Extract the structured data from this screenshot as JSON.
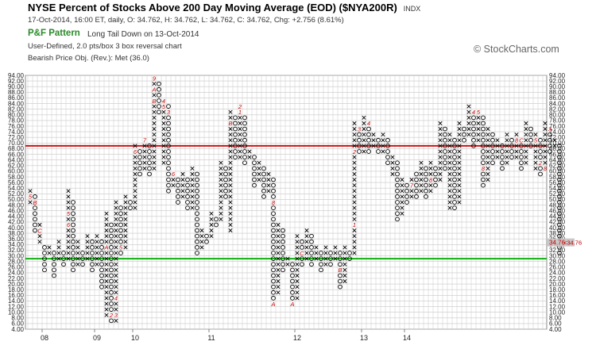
{
  "header": {
    "title": "NYSE Percent of Stocks Above 200 Day Moving Average (EOD) ($NYA200R)",
    "exchange": "INDX",
    "quote": "17-Oct-2014, 16:00 ET, daily, O: 34.762, H: 34.762, L: 34.762, C: 34.762, Chg: +2.756 (8.61%)",
    "pattern_label": "P&F Pattern",
    "pattern_name": "Long Tail Down on 13-Oct-2014",
    "settings": "User-Defined, 2.0 pts/box 3 box reversal chart",
    "price_objective": "Bearish Price Obj. (Rev.): Met (36.0)",
    "watermark": "© StockCharts.com"
  },
  "colors": {
    "grid": "#c8c8c8",
    "red_line": "#d01010",
    "green_line": "#10b010",
    "month_digit": "#c00000",
    "last_price_box": "#c8c8c8"
  },
  "chart_data": {
    "type": "point-and-figure",
    "box_size": 2.0,
    "reversal": 3,
    "ylim": [
      4,
      94
    ],
    "y_ticks": [
      "4.00",
      "6.00",
      "8.00",
      "10.00",
      "12.00",
      "14.00",
      "16.00",
      "18.00",
      "20.00",
      "22.00",
      "24.00",
      "26.00",
      "28.00",
      "30.00",
      "32.00",
      "34.00",
      "36.00",
      "38.00",
      "40.00",
      "42.00",
      "44.00",
      "46.00",
      "48.00",
      "50.00",
      "52.00",
      "54.00",
      "56.00",
      "58.00",
      "60.00",
      "62.00",
      "64.00",
      "66.00",
      "68.00",
      "70.00",
      "72.00",
      "74.00",
      "76.00",
      "78.00",
      "80.00",
      "82.00",
      "84.00",
      "86.00",
      "88.00",
      "90.00",
      "92.00",
      "94.00"
    ],
    "horizontal_lines": [
      {
        "color": "red",
        "value": 69
      },
      {
        "color": "green",
        "value": 29
      }
    ],
    "last_price_label": "34.76",
    "x_year_labels": [
      {
        "label": "08",
        "col": 3
      },
      {
        "label": "09",
        "col": 14
      },
      {
        "label": "10",
        "col": 22
      },
      {
        "label": "11",
        "col": 38
      },
      {
        "label": "12",
        "col": 56
      },
      {
        "label": "13",
        "col": 70
      },
      {
        "label": "14",
        "col": 79
      }
    ],
    "columns": [
      {
        "t": "X",
        "lo": 48,
        "hi": 52
      },
      {
        "t": "O",
        "lo": 38,
        "hi": 50
      },
      {
        "t": "X",
        "lo": 34,
        "hi": 40
      },
      {
        "t": "O",
        "lo": 24,
        "hi": 32
      },
      {
        "t": "X",
        "lo": 30,
        "hi": 32
      },
      {
        "t": "O",
        "lo": 22,
        "hi": 30
      },
      {
        "t": "X",
        "lo": 28,
        "hi": 34
      },
      {
        "t": "O",
        "lo": 26,
        "hi": 30
      },
      {
        "t": "X",
        "lo": 28,
        "hi": 52
      },
      {
        "t": "O",
        "lo": 24,
        "hi": 48
      },
      {
        "t": "X",
        "lo": 26,
        "hi": 34
      },
      {
        "t": "O",
        "lo": 26,
        "hi": 30
      },
      {
        "t": "X",
        "lo": 28,
        "hi": 36
      },
      {
        "t": "O",
        "lo": 24,
        "hi": 34
      },
      {
        "t": "X",
        "lo": 26,
        "hi": 36
      },
      {
        "t": "O",
        "lo": 18,
        "hi": 34
      },
      {
        "t": "X",
        "lo": 8,
        "hi": 44
      },
      {
        "t": "O",
        "lo": 6,
        "hi": 40
      },
      {
        "t": "X",
        "lo": 6,
        "hi": 48
      },
      {
        "t": "O",
        "lo": 30,
        "hi": 46
      },
      {
        "t": "X",
        "lo": 32,
        "hi": 50
      },
      {
        "t": "O",
        "lo": 46,
        "hi": 48
      },
      {
        "t": "X",
        "lo": 46,
        "hi": 68
      },
      {
        "t": "O",
        "lo": 58,
        "hi": 66
      },
      {
        "t": "X",
        "lo": 60,
        "hi": 70
      },
      {
        "t": "O",
        "lo": 58,
        "hi": 68
      },
      {
        "t": "X",
        "lo": 60,
        "hi": 92
      },
      {
        "t": "O",
        "lo": 80,
        "hi": 90
      },
      {
        "t": "X",
        "lo": 62,
        "hi": 84
      },
      {
        "t": "O",
        "lo": 52,
        "hi": 82
      },
      {
        "t": "X",
        "lo": 54,
        "hi": 58
      },
      {
        "t": "O",
        "lo": 48,
        "hi": 56
      },
      {
        "t": "X",
        "lo": 50,
        "hi": 58
      },
      {
        "t": "O",
        "lo": 46,
        "hi": 56
      },
      {
        "t": "X",
        "lo": 46,
        "hi": 60
      },
      {
        "t": "O",
        "lo": 30,
        "hi": 58
      },
      {
        "t": "X",
        "lo": 32,
        "hi": 38
      },
      {
        "t": "O",
        "lo": 34,
        "hi": 36
      },
      {
        "t": "X",
        "lo": 36,
        "hi": 44
      },
      {
        "t": "O",
        "lo": 40,
        "hi": 42
      },
      {
        "t": "X",
        "lo": 42,
        "hi": 62
      },
      {
        "t": "O",
        "lo": 50,
        "hi": 60
      },
      {
        "t": "X",
        "lo": 38,
        "hi": 80
      },
      {
        "t": "O",
        "lo": 64,
        "hi": 78
      },
      {
        "t": "X",
        "lo": 64,
        "hi": 82
      },
      {
        "t": "O",
        "lo": 62,
        "hi": 78
      },
      {
        "t": "X",
        "lo": 64,
        "hi": 66
      },
      {
        "t": "O",
        "lo": 54,
        "hi": 64
      },
      {
        "t": "X",
        "lo": 56,
        "hi": 62
      },
      {
        "t": "O",
        "lo": 50,
        "hi": 60
      },
      {
        "t": "X",
        "lo": 52,
        "hi": 58
      },
      {
        "t": "O",
        "lo": 12,
        "hi": 56
      },
      {
        "t": "X",
        "lo": 16,
        "hi": 40
      },
      {
        "t": "O",
        "lo": 24,
        "hi": 38
      },
      {
        "t": "X",
        "lo": 26,
        "hi": 28
      },
      {
        "t": "O",
        "lo": 12,
        "hi": 26
      },
      {
        "t": "X",
        "lo": 14,
        "hi": 36
      },
      {
        "t": "O",
        "lo": 26,
        "hi": 34
      },
      {
        "t": "X",
        "lo": 28,
        "hi": 38
      },
      {
        "t": "O",
        "lo": 26,
        "hi": 36
      },
      {
        "t": "X",
        "lo": 28,
        "hi": 32
      },
      {
        "t": "O",
        "lo": 24,
        "hi": 30
      },
      {
        "t": "X",
        "lo": 26,
        "hi": 32
      },
      {
        "t": "O",
        "lo": 26,
        "hi": 30
      },
      {
        "t": "X",
        "lo": 28,
        "hi": 32
      },
      {
        "t": "O",
        "lo": 18,
        "hi": 30
      },
      {
        "t": "X",
        "lo": 20,
        "hi": 32
      },
      {
        "t": "O",
        "lo": 28,
        "hi": 30
      },
      {
        "t": "X",
        "lo": 30,
        "hi": 76
      },
      {
        "t": "O",
        "lo": 66,
        "hi": 74
      },
      {
        "t": "X",
        "lo": 66,
        "hi": 78
      },
      {
        "t": "O",
        "lo": 66,
        "hi": 76
      },
      {
        "t": "X",
        "lo": 68,
        "hi": 72
      },
      {
        "t": "O",
        "lo": 66,
        "hi": 70
      },
      {
        "t": "X",
        "lo": 66,
        "hi": 72
      },
      {
        "t": "O",
        "lo": 62,
        "hi": 70
      },
      {
        "t": "X",
        "lo": 58,
        "hi": 64
      },
      {
        "t": "O",
        "lo": 42,
        "hi": 62
      },
      {
        "t": "X",
        "lo": 44,
        "hi": 56
      },
      {
        "t": "O",
        "lo": 48,
        "hi": 54
      },
      {
        "t": "X",
        "lo": 50,
        "hi": 56
      },
      {
        "t": "O",
        "lo": 50,
        "hi": 58
      },
      {
        "t": "X",
        "lo": 52,
        "hi": 62
      },
      {
        "t": "O",
        "lo": 50,
        "hi": 60
      },
      {
        "t": "X",
        "lo": 52,
        "hi": 62
      },
      {
        "t": "O",
        "lo": 54,
        "hi": 60
      },
      {
        "t": "X",
        "lo": 56,
        "hi": 76
      },
      {
        "t": "O",
        "lo": 60,
        "hi": 74
      },
      {
        "t": "X",
        "lo": 46,
        "hi": 72
      },
      {
        "t": "O",
        "lo": 46,
        "hi": 70
      },
      {
        "t": "X",
        "lo": 48,
        "hi": 76
      },
      {
        "t": "O",
        "lo": 70,
        "hi": 74
      },
      {
        "t": "X",
        "lo": 72,
        "hi": 82
      },
      {
        "t": "O",
        "lo": 68,
        "hi": 80
      },
      {
        "t": "X",
        "lo": 70,
        "hi": 80
      },
      {
        "t": "O",
        "lo": 54,
        "hi": 78
      },
      {
        "t": "X",
        "lo": 56,
        "hi": 74
      },
      {
        "t": "O",
        "lo": 62,
        "hi": 72
      },
      {
        "t": "X",
        "lo": 64,
        "hi": 70
      },
      {
        "t": "O",
        "lo": 60,
        "hi": 68
      },
      {
        "t": "X",
        "lo": 62,
        "hi": 72
      },
      {
        "t": "O",
        "lo": 64,
        "hi": 70
      },
      {
        "t": "X",
        "lo": 64,
        "hi": 72
      },
      {
        "t": "O",
        "lo": 60,
        "hi": 70
      },
      {
        "t": "X",
        "lo": 62,
        "hi": 76
      },
      {
        "t": "O",
        "lo": 68,
        "hi": 74
      },
      {
        "t": "X",
        "lo": 60,
        "hi": 72
      },
      {
        "t": "O",
        "lo": 58,
        "hi": 70
      },
      {
        "t": "X",
        "lo": 60,
        "hi": 76
      },
      {
        "t": "O",
        "lo": 66,
        "hi": 74
      },
      {
        "t": "X",
        "lo": 68,
        "hi": 70
      },
      {
        "t": "O",
        "lo": 30,
        "hi": 68
      }
    ],
    "month_markers": [
      {
        "col": 0,
        "v": 50,
        "c": "5"
      },
      {
        "col": 1,
        "v": 48,
        "c": "B"
      },
      {
        "col": 2,
        "v": 38,
        "c": "C"
      },
      {
        "col": 7,
        "v": 32,
        "c": "3"
      },
      {
        "col": 8,
        "v": 44,
        "c": "5"
      },
      {
        "col": 8,
        "v": 40,
        "c": "6"
      },
      {
        "col": 13,
        "v": 36,
        "c": "9"
      },
      {
        "col": 16,
        "v": 32,
        "c": "A"
      },
      {
        "col": 17,
        "v": 8,
        "c": "2"
      },
      {
        "col": 18,
        "v": 8,
        "c": "3"
      },
      {
        "col": 18,
        "v": 14,
        "c": "4"
      },
      {
        "col": 19,
        "v": 32,
        "c": "5"
      },
      {
        "col": 22,
        "v": 66,
        "c": "6"
      },
      {
        "col": 24,
        "v": 70,
        "c": "7"
      },
      {
        "col": 26,
        "v": 92,
        "c": "9"
      },
      {
        "col": 26,
        "v": 88,
        "c": "A"
      },
      {
        "col": 26,
        "v": 84,
        "c": "B"
      },
      {
        "col": 28,
        "v": 84,
        "c": "4"
      },
      {
        "col": 28,
        "v": 82,
        "c": "5"
      },
      {
        "col": 29,
        "v": 80,
        "c": "3"
      },
      {
        "col": 30,
        "v": 58,
        "c": "6"
      },
      {
        "col": 40,
        "v": 70,
        "c": "A"
      },
      {
        "col": 41,
        "v": 72,
        "c": "C"
      },
      {
        "col": 42,
        "v": 76,
        "c": "B"
      },
      {
        "col": 44,
        "v": 82,
        "c": "2"
      },
      {
        "col": 44,
        "v": 80,
        "c": "1"
      },
      {
        "col": 45,
        "v": 80,
        "c": "3"
      },
      {
        "col": 47,
        "v": 80,
        "c": "5"
      },
      {
        "col": 41,
        "v": 42,
        "c": "9"
      },
      {
        "col": 51,
        "v": 48,
        "c": "8"
      },
      {
        "col": 51,
        "v": 12,
        "c": "A"
      },
      {
        "col": 55,
        "v": 12,
        "c": "A"
      },
      {
        "col": 57,
        "v": 30,
        "c": "C"
      },
      {
        "col": 65,
        "v": 24,
        "c": "B"
      },
      {
        "col": 68,
        "v": 40,
        "c": "1"
      },
      {
        "col": 68,
        "v": 66,
        "c": "2"
      },
      {
        "col": 69,
        "v": 74,
        "c": "3"
      },
      {
        "col": 71,
        "v": 76,
        "c": "4"
      },
      {
        "col": 75,
        "v": 54,
        "c": "6"
      },
      {
        "col": 80,
        "v": 54,
        "c": "7"
      },
      {
        "col": 84,
        "v": 56,
        "c": "8"
      },
      {
        "col": 93,
        "v": 80,
        "c": "4"
      },
      {
        "col": 94,
        "v": 80,
        "c": "5"
      },
      {
        "col": 94,
        "v": 68,
        "c": "1"
      },
      {
        "col": 95,
        "v": 60,
        "c": "8"
      },
      {
        "col": 98,
        "v": 56,
        "c": "9"
      },
      {
        "col": 102,
        "v": 70,
        "c": "8"
      },
      {
        "col": 103,
        "v": 70,
        "c": "C"
      },
      {
        "col": 106,
        "v": 70,
        "c": "5"
      },
      {
        "col": 107,
        "v": 62,
        "c": "2"
      },
      {
        "col": 109,
        "v": 74,
        "c": "3"
      },
      {
        "col": 110,
        "v": 74,
        "c": "4"
      },
      {
        "col": 111,
        "v": 74,
        "c": "6"
      },
      {
        "col": 112,
        "v": 76,
        "c": "7"
      },
      {
        "col": 108,
        "v": 60,
        "c": "8"
      },
      {
        "col": 111,
        "v": 70,
        "c": "9"
      },
      {
        "col": 112,
        "v": 58,
        "c": "A"
      }
    ]
  }
}
